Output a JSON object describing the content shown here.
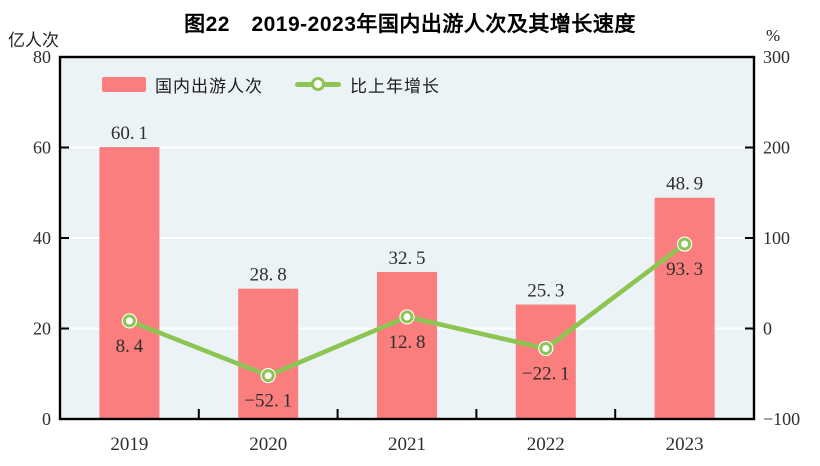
{
  "colors": {
    "bar": "#FB7E7E",
    "line": "#8DC552",
    "plot_bg": "#ECF3F7",
    "grid": "#FFFFFF",
    "axis": "#000000",
    "text": "#2E2E2E"
  },
  "chart_data": {
    "type": "bar+line",
    "title": "图22　2019-2023年国内出游人次及其增长速度",
    "categories": [
      "2019",
      "2020",
      "2021",
      "2022",
      "2023"
    ],
    "series": [
      {
        "name": "国内出游人次",
        "type": "bar",
        "axis": "left",
        "values": [
          60.1,
          28.8,
          32.5,
          25.3,
          48.9
        ]
      },
      {
        "name": "比上年增长",
        "type": "line",
        "axis": "right",
        "values": [
          8.4,
          -52.1,
          12.8,
          -22.1,
          93.3
        ]
      }
    ],
    "left_axis": {
      "label": "亿人次",
      "min": 0,
      "max": 80,
      "ticks": [
        0,
        20,
        40,
        60,
        80
      ]
    },
    "right_axis": {
      "label": "%",
      "min": -100,
      "max": 300,
      "ticks": [
        -100,
        0,
        100,
        200,
        300
      ]
    },
    "legend": {
      "position": "top-left-inside",
      "items": [
        {
          "label": "国内出游人次",
          "type": "bar"
        },
        {
          "label": "比上年增长",
          "type": "line"
        }
      ]
    },
    "grid": true,
    "data_labels": true
  }
}
